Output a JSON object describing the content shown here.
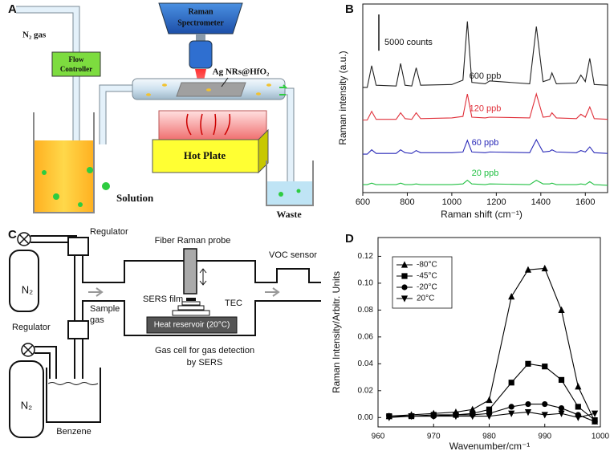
{
  "diagram_a": {
    "panel_label": "A",
    "spectrometer": [
      "Raman",
      "Spectrometer"
    ],
    "gas": "N₂ gas",
    "controller": [
      "Flow",
      "Controller"
    ],
    "substrate": "Ag NRs@HfO₂",
    "hot_plate": "Hot Plate",
    "solution": "Solution",
    "waste": "Waste"
  },
  "diagram_c": {
    "panel_label": "C",
    "gas_1": "N₂",
    "gas_2": "N₂",
    "regulator_1": "Regulator",
    "regulator_2": "Regulator",
    "probe": "Fiber Raman probe",
    "sensor": "VOC sensor",
    "sample_gas": [
      "Sample",
      "gas"
    ],
    "film": "SERS film",
    "tec": "TEC",
    "reservoir": "Heat reservoir (20°C)",
    "cell": [
      "Gas cell for gas detection",
      "by SERS"
    ],
    "benzene": "Benzene"
  },
  "chart_data": [
    {
      "type": "line",
      "panel_label": "B",
      "xlabel": "Raman shift (cm⁻¹)",
      "ylabel": "Raman intensity (a.u.)",
      "x": [
        600,
        620,
        640,
        660,
        750,
        770,
        790,
        820,
        840,
        860,
        1000,
        1050,
        1070,
        1090,
        1150,
        1170,
        1350,
        1380,
        1410,
        1440,
        1450,
        1470,
        1560,
        1580,
        1600,
        1620,
        1640,
        1700
      ],
      "xlim": [
        600,
        1700
      ],
      "xticks": [
        600,
        800,
        1000,
        1200,
        1400,
        1600
      ],
      "ylim": [
        0,
        26000
      ],
      "legend": "inline",
      "scale_bar": {
        "value": 5000,
        "label": "5000 counts"
      },
      "series": [
        {
          "name": "600 ppb",
          "color": "#222222",
          "values": [
            14500,
            14500,
            17500,
            14800,
            14700,
            17800,
            14800,
            14700,
            17200,
            14800,
            14900,
            15500,
            23600,
            15200,
            15000,
            15400,
            15000,
            22900,
            15300,
            15600,
            16500,
            15000,
            15100,
            16200,
            15300,
            18500,
            14900,
            14800
          ]
        },
        {
          "name": "120 ppb",
          "color": "#e0303a",
          "values": [
            10000,
            10000,
            11200,
            10100,
            10100,
            11000,
            10200,
            10100,
            11000,
            10200,
            10300,
            10500,
            13600,
            10400,
            10300,
            10400,
            10300,
            13600,
            10400,
            10500,
            11000,
            10300,
            10200,
            10800,
            10400,
            11800,
            10200,
            10100
          ]
        },
        {
          "name": "60 ppb",
          "color": "#2a2ab8",
          "values": [
            5300,
            5300,
            5900,
            5400,
            5400,
            5900,
            5500,
            5400,
            5800,
            5500,
            5500,
            5600,
            7200,
            5600,
            5500,
            5600,
            5500,
            7300,
            5600,
            5700,
            5900,
            5600,
            5500,
            5800,
            5600,
            6300,
            5500,
            5400
          ]
        },
        {
          "name": "20 ppb",
          "color": "#22c043",
          "values": [
            1100,
            1100,
            1300,
            1100,
            1100,
            1300,
            1100,
            1100,
            1200,
            1100,
            1100,
            1200,
            1700,
            1200,
            1100,
            1200,
            1100,
            1700,
            1200,
            1200,
            1300,
            1100,
            1100,
            1200,
            1100,
            1500,
            1100,
            1000
          ]
        }
      ]
    },
    {
      "type": "line",
      "panel_label": "D",
      "xlabel": "Wavenumber/cm⁻¹",
      "ylabel": "Raman Intensity/Arbitr. Units",
      "x": [
        962,
        966,
        970,
        974,
        977,
        980,
        984,
        987,
        990,
        993,
        996,
        999
      ],
      "xlim": [
        960,
        1000
      ],
      "xticks": [
        960,
        970,
        980,
        990,
        1000
      ],
      "ylim": [
        -0.007,
        0.134
      ],
      "yticks": [
        {
          "value": 0,
          "label": "0.00"
        },
        0.02,
        0.04,
        0.06,
        0.08,
        {
          "value": 0.1,
          "label": "0.10"
        },
        0.12
      ],
      "legend": "upper left",
      "series": [
        {
          "name": "-80°C",
          "color": "#000000",
          "marker": "triangle",
          "values": [
            0.001,
            0.002,
            0.003,
            0.004,
            0.006,
            0.013,
            0.09,
            0.11,
            0.111,
            0.08,
            0.023,
            -0.003
          ]
        },
        {
          "name": "-45°C",
          "color": "#000000",
          "marker": "square",
          "values": [
            0.001,
            0.001,
            0.002,
            0.002,
            0.003,
            0.006,
            0.026,
            0.04,
            0.038,
            0.028,
            0.008,
            -0.002
          ]
        },
        {
          "name": "-20°C",
          "color": "#000000",
          "marker": "circle",
          "values": [
            0.001,
            0.001,
            0.001,
            0.002,
            0.002,
            0.003,
            0.008,
            0.01,
            0.01,
            0.007,
            0.002,
            -0.003
          ]
        },
        {
          "name": "20°C",
          "color": "#000000",
          "marker": "triangle-down",
          "values": [
            0,
            0.001,
            0.001,
            0.001,
            0.001,
            0.001,
            0.003,
            0.004,
            0.002,
            0.003,
            0,
            0.003
          ]
        }
      ]
    }
  ]
}
